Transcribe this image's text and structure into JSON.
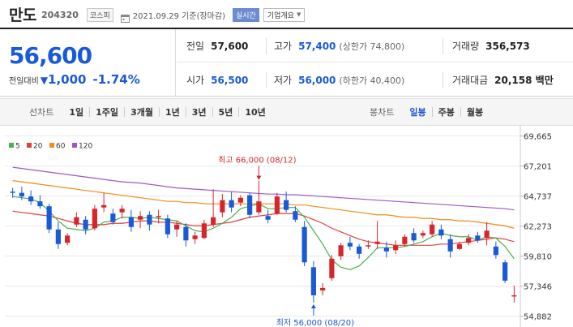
{
  "header": {
    "name": "만도",
    "code": "204320",
    "market": "코스피",
    "date_text": "2021.09.29 기준(장마감)",
    "live_label": "실시간",
    "info_button": "기업개요"
  },
  "summary": {
    "price": "56,600",
    "change_label": "전일대비",
    "change_value": "1,000",
    "change_pct": "-1.74%",
    "stats": {
      "prev_label": "전일",
      "prev_value": "57,600",
      "high_label": "고가",
      "high_value": "57,400",
      "upper_limit": "(상한가 74,800)",
      "volume_label": "거래량",
      "volume_value": "356,573",
      "open_label": "시가",
      "open_value": "56,500",
      "low_label": "저가",
      "low_value": "56,000",
      "lower_limit": "(하한가 40,400)",
      "amount_label": "거래대금",
      "amount_value": "20,158 백만"
    }
  },
  "toolbar": {
    "line_title": "선차트",
    "line_periods": [
      "1일",
      "1주일",
      "3개월",
      "1년",
      "3년",
      "5년",
      "10년"
    ],
    "candle_title": "봉차트",
    "candle_periods": [
      "일봉",
      "주봉",
      "월봉"
    ],
    "active_candle": "일봉"
  },
  "colors": {
    "up": "#d6262c",
    "down": "#1a5ad6",
    "ma5": "#4caf50",
    "ma20": "#e04040",
    "ma60": "#f08c1c",
    "ma120": "#9b59c6"
  },
  "chart_data": {
    "type": "candlestick",
    "legend": [
      {
        "name": "5",
        "color": "#4caf50"
      },
      {
        "name": "20",
        "color": "#e04040"
      },
      {
        "name": "60",
        "color": "#f08c1c"
      },
      {
        "name": "120",
        "color": "#9b59c6"
      }
    ],
    "ylim": [
      54000,
      70500
    ],
    "yticks": [
      69665,
      67201,
      64737,
      62273,
      59810,
      57346,
      54882
    ],
    "ytick_labels": [
      "69,665",
      "67,201",
      "64,737",
      "62,273",
      "59,810",
      "57,346",
      "54,882"
    ],
    "annotations": {
      "high_label": "최고 66,000 (08/12)",
      "high_value": 66000,
      "high_index": 27,
      "low_label": "최저 56,000 (08/20)",
      "low_value": 56000,
      "low_index": 33
    },
    "candles": [
      {
        "o": 65100,
        "h": 65400,
        "l": 64600,
        "c": 65000
      },
      {
        "o": 65000,
        "h": 65500,
        "l": 64400,
        "c": 64700
      },
      {
        "o": 64700,
        "h": 65200,
        "l": 64000,
        "c": 64300
      },
      {
        "o": 64300,
        "h": 64800,
        "l": 63700,
        "c": 63900
      },
      {
        "o": 63900,
        "h": 64100,
        "l": 61700,
        "c": 62000
      },
      {
        "o": 62000,
        "h": 62600,
        "l": 60400,
        "c": 60800
      },
      {
        "o": 60900,
        "h": 61700,
        "l": 60700,
        "c": 61500
      },
      {
        "o": 62400,
        "h": 63400,
        "l": 62200,
        "c": 63000
      },
      {
        "o": 62800,
        "h": 63100,
        "l": 61600,
        "c": 62000
      },
      {
        "o": 62100,
        "h": 64000,
        "l": 61900,
        "c": 63700
      },
      {
        "o": 63800,
        "h": 65000,
        "l": 63400,
        "c": 64000
      },
      {
        "o": 63300,
        "h": 63700,
        "l": 62400,
        "c": 62600
      },
      {
        "o": 63400,
        "h": 64000,
        "l": 62900,
        "c": 63700
      },
      {
        "o": 63000,
        "h": 63600,
        "l": 61800,
        "c": 62200
      },
      {
        "o": 62800,
        "h": 63500,
        "l": 62100,
        "c": 63100
      },
      {
        "o": 63200,
        "h": 63500,
        "l": 61900,
        "c": 62400
      },
      {
        "o": 63000,
        "h": 63600,
        "l": 62500,
        "c": 63100
      },
      {
        "o": 62900,
        "h": 63200,
        "l": 61300,
        "c": 61600
      },
      {
        "o": 62000,
        "h": 62700,
        "l": 61400,
        "c": 62400
      },
      {
        "o": 62200,
        "h": 62500,
        "l": 60600,
        "c": 61100
      },
      {
        "o": 61200,
        "h": 61800,
        "l": 60800,
        "c": 61500
      },
      {
        "o": 61300,
        "h": 62800,
        "l": 61200,
        "c": 62500
      },
      {
        "o": 62400,
        "h": 65300,
        "l": 62200,
        "c": 63000
      },
      {
        "o": 63400,
        "h": 64900,
        "l": 63000,
        "c": 64400
      },
      {
        "o": 64400,
        "h": 65100,
        "l": 63400,
        "c": 63800
      },
      {
        "o": 64200,
        "h": 64800,
        "l": 63900,
        "c": 64600
      },
      {
        "o": 64800,
        "h": 65000,
        "l": 62900,
        "c": 63200
      },
      {
        "o": 63400,
        "h": 66000,
        "l": 63200,
        "c": 64300
      },
      {
        "o": 63100,
        "h": 63600,
        "l": 62500,
        "c": 62800
      },
      {
        "o": 63300,
        "h": 65000,
        "l": 63200,
        "c": 64700
      },
      {
        "o": 64400,
        "h": 65100,
        "l": 63400,
        "c": 63600
      },
      {
        "o": 63500,
        "h": 63900,
        "l": 62600,
        "c": 62800
      },
      {
        "o": 62200,
        "h": 62700,
        "l": 59000,
        "c": 59300
      },
      {
        "o": 58900,
        "h": 59400,
        "l": 56000,
        "c": 56600
      },
      {
        "o": 57000,
        "h": 57600,
        "l": 56600,
        "c": 57200
      },
      {
        "o": 58000,
        "h": 59900,
        "l": 57800,
        "c": 59600
      },
      {
        "o": 59800,
        "h": 60900,
        "l": 59500,
        "c": 60700
      },
      {
        "o": 60900,
        "h": 61400,
        "l": 60300,
        "c": 60600
      },
      {
        "o": 60600,
        "h": 60800,
        "l": 59600,
        "c": 60000
      },
      {
        "o": 60600,
        "h": 61100,
        "l": 60400,
        "c": 60700
      },
      {
        "o": 60800,
        "h": 62700,
        "l": 60400,
        "c": 61000
      },
      {
        "o": 60500,
        "h": 61000,
        "l": 59700,
        "c": 60200
      },
      {
        "o": 60300,
        "h": 61100,
        "l": 60000,
        "c": 60700
      },
      {
        "o": 60800,
        "h": 61600,
        "l": 60600,
        "c": 61400
      },
      {
        "o": 61700,
        "h": 62100,
        "l": 60900,
        "c": 61100
      },
      {
        "o": 61500,
        "h": 61900,
        "l": 61300,
        "c": 61700
      },
      {
        "o": 61600,
        "h": 62700,
        "l": 61400,
        "c": 62400
      },
      {
        "o": 62000,
        "h": 62400,
        "l": 61200,
        "c": 61500
      },
      {
        "o": 61200,
        "h": 61600,
        "l": 59700,
        "c": 60200
      },
      {
        "o": 60400,
        "h": 61000,
        "l": 60300,
        "c": 60800
      },
      {
        "o": 60900,
        "h": 61600,
        "l": 60700,
        "c": 61300
      },
      {
        "o": 61500,
        "h": 61800,
        "l": 60900,
        "c": 61100
      },
      {
        "o": 61300,
        "h": 62600,
        "l": 60700,
        "c": 61900
      },
      {
        "o": 60600,
        "h": 61000,
        "l": 59600,
        "c": 59900
      },
      {
        "o": 59300,
        "h": 59500,
        "l": 57600,
        "c": 57800
      },
      {
        "o": 56500,
        "h": 57400,
        "l": 56000,
        "c": 56600
      }
    ],
    "ma5": [
      64700,
      64600,
      64500,
      64200,
      63500,
      62700,
      62100,
      62000,
      61900,
      62100,
      62600,
      62700,
      63000,
      63000,
      62900,
      63000,
      62900,
      62800,
      62700,
      62300,
      61900,
      61800,
      62100,
      62500,
      63000,
      63700,
      63900,
      64100,
      63700,
      63700,
      63800,
      63800,
      63000,
      61900,
      60800,
      59500,
      58900,
      58700,
      59000,
      59700,
      60500,
      60500,
      60500,
      60600,
      60800,
      61000,
      61400,
      61700,
      61500,
      61400,
      61400,
      61100,
      61400,
      61300,
      60600,
      59600
    ],
    "ma20": [
      63500,
      63400,
      63300,
      63200,
      63100,
      62900,
      62700,
      62500,
      62400,
      62400,
      62400,
      62500,
      62500,
      62600,
      62700,
      62700,
      62600,
      62600,
      62500,
      62400,
      62300,
      62300,
      62400,
      62500,
      62600,
      62800,
      63000,
      63100,
      63200,
      63300,
      63300,
      63300,
      63100,
      62800,
      62500,
      62100,
      61800,
      61500,
      61200,
      61000,
      60900,
      60800,
      60700,
      60700,
      60700,
      60700,
      60700,
      60800,
      60800,
      60900,
      61000,
      61100,
      61200,
      61300,
      61200,
      61000
    ],
    "ma60": [
      66000,
      65900,
      65800,
      65700,
      65600,
      65500,
      65400,
      65300,
      65200,
      65100,
      65000,
      64900,
      64800,
      64700,
      64600,
      64500,
      64400,
      64300,
      64300,
      64200,
      64200,
      64100,
      64100,
      64100,
      64100,
      64100,
      64100,
      64100,
      64100,
      64100,
      64100,
      64000,
      64000,
      63900,
      63800,
      63700,
      63600,
      63500,
      63400,
      63300,
      63200,
      63200,
      63100,
      63000,
      63000,
      62900,
      62900,
      62800,
      62800,
      62700,
      62700,
      62600,
      62500,
      62400,
      62300,
      62100
    ],
    "ma120": [
      67100,
      67000,
      66900,
      66800,
      66700,
      66600,
      66500,
      66400,
      66300,
      66200,
      66100,
      66000,
      65900,
      65850,
      65800,
      65700,
      65600,
      65500,
      65400,
      65350,
      65300,
      65250,
      65200,
      65150,
      65100,
      65050,
      65000,
      64950,
      64900,
      64900,
      64850,
      64850,
      64800,
      64750,
      64700,
      64650,
      64600,
      64550,
      64500,
      64450,
      64400,
      64350,
      64300,
      64250,
      64200,
      64150,
      64100,
      64050,
      64000,
      63950,
      63900,
      63850,
      63800,
      63750,
      63700,
      63600
    ]
  }
}
